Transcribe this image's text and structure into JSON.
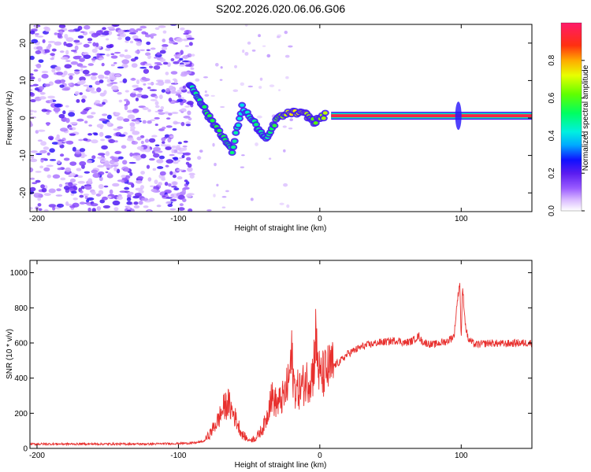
{
  "title": "S202.2026.020.06.06.G06",
  "colors": {
    "snr_line": "#e8302e",
    "axis": "#000000",
    "background": "#ffffff"
  },
  "chart_data": [
    {
      "type": "heatmap",
      "xlabel": "Height of straight line (km)",
      "ylabel": "Frequency (Hz)",
      "xlim": [
        -205,
        150
      ],
      "ylim": [
        -25,
        25
      ],
      "x_ticks": [
        -200,
        -100,
        0,
        100
      ],
      "x_tick_labels": [
        "-200",
        "-100",
        "0",
        "100"
      ],
      "y_ticks": [
        20,
        10,
        0,
        -10,
        -20
      ],
      "y_tick_labels": [
        "20",
        "10",
        "0",
        "-10",
        "-20"
      ],
      "colorbar": {
        "label": "Normalized spectral amplitude",
        "range": [
          0,
          1
        ],
        "ticks": [
          0.0,
          0.2,
          0.4,
          0.6,
          0.8
        ],
        "tick_labels": [
          "0.0",
          "0.2",
          "0.4",
          "0.6",
          "0.8"
        ]
      },
      "features": {
        "noise_region_km": [
          -205,
          -90
        ],
        "chirp_track": [
          {
            "x": -92,
            "y": 9,
            "amp": 0.45
          },
          {
            "x": -85,
            "y": 5,
            "amp": 0.5
          },
          {
            "x": -78,
            "y": 0,
            "amp": 0.55
          },
          {
            "x": -70,
            "y": -4,
            "amp": 0.55
          },
          {
            "x": -62,
            "y": -9,
            "amp": 0.5
          },
          {
            "x": -55,
            "y": 3,
            "amp": 0.4
          },
          {
            "x": -45,
            "y": -2,
            "amp": 0.5
          },
          {
            "x": -38,
            "y": -6,
            "amp": 0.45
          },
          {
            "x": -30,
            "y": 0,
            "amp": 0.6
          },
          {
            "x": -20,
            "y": 1.5,
            "amp": 0.75
          },
          {
            "x": -10,
            "y": 1,
            "amp": 0.7
          },
          {
            "x": -4,
            "y": -1,
            "amp": 0.6
          },
          {
            "x": 5,
            "y": 1,
            "amp": 0.7
          }
        ],
        "carrier_band": {
          "x_start": 8,
          "x_end": 150,
          "y": 0.6,
          "amp": 0.95
        }
      }
    },
    {
      "type": "line",
      "xlabel": "Height of straight line (km)",
      "ylabel": "SNR (10 * v/v)",
      "xlim": [
        -205,
        150
      ],
      "ylim": [
        0,
        1070
      ],
      "x_ticks": [
        -200,
        -100,
        0,
        100
      ],
      "x_tick_labels": [
        "-200",
        "-100",
        "0",
        "100"
      ],
      "y_ticks": [
        0,
        200,
        400,
        600,
        800,
        1000
      ],
      "y_tick_labels": [
        "0",
        "200",
        "400",
        "600",
        "800",
        "1000"
      ],
      "series": [
        {
          "name": "SNR",
          "x": [
            -205,
            -180,
            -150,
            -120,
            -100,
            -90,
            -82,
            -78,
            -72,
            -68,
            -65,
            -60,
            -55,
            -50,
            -45,
            -40,
            -37,
            -35,
            -30,
            -25,
            -22,
            -20,
            -18,
            -15,
            -10,
            -5,
            -3,
            0,
            5,
            10,
            15,
            20,
            25,
            30,
            35,
            40,
            45,
            50,
            55,
            60,
            65,
            70,
            72,
            75,
            80,
            85,
            90,
            95,
            97,
            99,
            100,
            101,
            103,
            105,
            110,
            115,
            120,
            130,
            140,
            150
          ],
          "y": [
            25,
            25,
            25,
            25,
            28,
            30,
            40,
            80,
            160,
            230,
            260,
            180,
            80,
            45,
            60,
            120,
            190,
            300,
            250,
            300,
            380,
            520,
            350,
            330,
            380,
            420,
            620,
            400,
            440,
            470,
            500,
            540,
            560,
            580,
            590,
            600,
            605,
            610,
            615,
            600,
            610,
            640,
            610,
            600,
            590,
            600,
            610,
            640,
            820,
            950,
            620,
            920,
            700,
            620,
            590,
            595,
            600,
            595,
            600,
            600
          ]
        }
      ],
      "grid": false
    }
  ]
}
